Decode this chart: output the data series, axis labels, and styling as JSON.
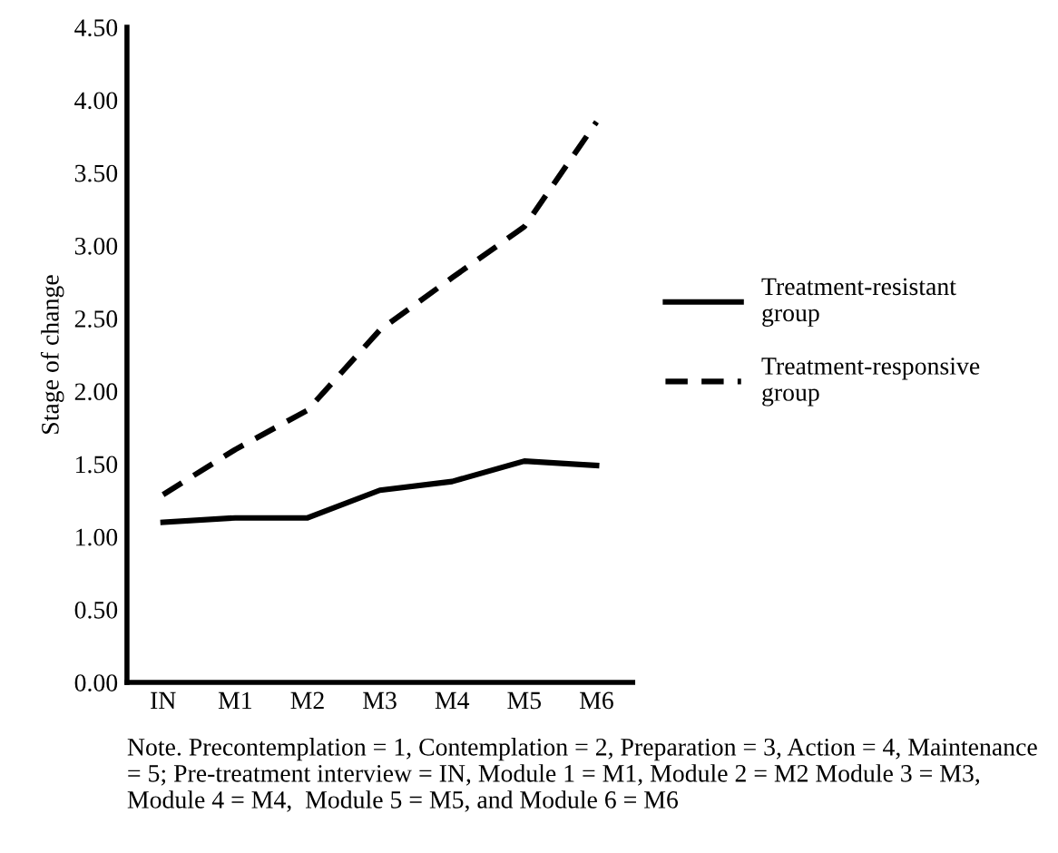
{
  "chart_data": {
    "type": "line",
    "ylabel": "Stage of change",
    "categories": [
      "IN",
      "M1",
      "M2",
      "M3",
      "M4",
      "M5",
      "M6"
    ],
    "series": [
      {
        "name": "Treatment-resistant group",
        "color": "#000000",
        "line_style": "solid",
        "values": [
          1.1,
          1.13,
          1.13,
          1.32,
          1.38,
          1.52,
          1.49
        ]
      },
      {
        "name": "Treatment-responsive group",
        "color": "#000000",
        "line_style": "dashed",
        "values": [
          1.29,
          1.6,
          1.87,
          2.42,
          2.78,
          3.13,
          3.85
        ]
      }
    ],
    "ylim": [
      0,
      4.5
    ],
    "yticks": [
      {
        "value": 0,
        "label": "0.00"
      },
      {
        "value": 0.5,
        "label": "0.50"
      },
      {
        "value": 1,
        "label": "1.00"
      },
      {
        "value": 1.5,
        "label": "1.50"
      },
      {
        "value": 2,
        "label": "2.00"
      },
      {
        "value": 2.5,
        "label": "2.50"
      },
      {
        "value": 3,
        "label": "3.00"
      },
      {
        "value": 3.5,
        "label": "3.50"
      },
      {
        "value": 4,
        "label": "4.00"
      },
      {
        "value": 4.5,
        "label": "4.50"
      }
    ],
    "grid": false,
    "legend": "right",
    "marker": "none",
    "annotations": [
      "Note. Precontemplation = 1, Contemplation = 2, Preparation = 3, Action = 4, Maintenance = 5; Pre-treatment interview = IN, Module 1 = M1, Module 2 = M2 Module 3 = M3,  Module 4 = M4,  Module 5 = M5, and Module 6 = M6"
    ]
  }
}
